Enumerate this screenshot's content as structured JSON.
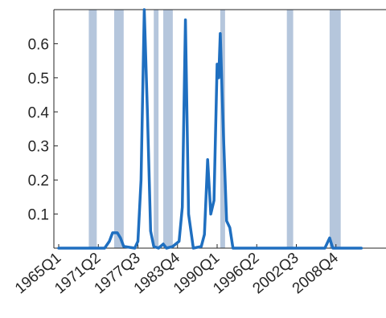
{
  "chart_data": {
    "type": "line",
    "title": "",
    "xlabel": "",
    "ylabel": "",
    "x_tick_labels": [
      "1965Q1",
      "1971Q2",
      "1977Q3",
      "1983Q4",
      "1990Q1",
      "1996Q2",
      "2002Q3",
      "2008Q4"
    ],
    "y_tick_labels": [
      "0.1",
      "0.2",
      "0.3",
      "0.4",
      "0.5",
      "0.6"
    ],
    "ylim": [
      0,
      0.7
    ],
    "xlim": [
      "1965Q1",
      "2012Q4"
    ],
    "grid": false,
    "legend": "none",
    "colors": {
      "line": "#1f6fc0",
      "shade": "#a8bcd6",
      "axis": "#262626"
    },
    "recession_periods": [
      {
        "start": "1969Q4",
        "end": "1970Q4"
      },
      {
        "start": "1973Q4",
        "end": "1975Q1"
      },
      {
        "start": "1980Q1",
        "end": "1980Q3"
      },
      {
        "start": "1981Q3",
        "end": "1982Q4"
      },
      {
        "start": "1990Q3",
        "end": "1991Q1"
      },
      {
        "start": "2001Q1",
        "end": "2001Q4"
      },
      {
        "start": "2007Q4",
        "end": "2009Q2"
      }
    ],
    "series": [
      {
        "values": [
          [
            "1965Q1",
            0.0
          ],
          [
            "1972Q2",
            0.0
          ],
          [
            "1973Q1",
            0.02
          ],
          [
            "1973Q3",
            0.045
          ],
          [
            "1974Q2",
            0.045
          ],
          [
            "1974Q4",
            0.03
          ],
          [
            "1975Q2",
            0.005
          ],
          [
            "1977Q1",
            0.0
          ],
          [
            "1977Q3",
            0.02
          ],
          [
            "1978Q1",
            0.2
          ],
          [
            "1978Q3",
            0.7
          ],
          [
            "1979Q1",
            0.4
          ],
          [
            "1979Q3",
            0.05
          ],
          [
            "1980Q1",
            0.005
          ],
          [
            "1980Q4",
            0.0
          ],
          [
            "1981Q3",
            0.012
          ],
          [
            "1982Q1",
            0.0
          ],
          [
            "1983Q1",
            0.005
          ],
          [
            "1984Q1",
            0.02
          ],
          [
            "1984Q3",
            0.12
          ],
          [
            "1985Q1",
            0.67
          ],
          [
            "1985Q3",
            0.1
          ],
          [
            "1986Q2",
            0.0
          ],
          [
            "1987Q3",
            0.005
          ],
          [
            "1988Q1",
            0.04
          ],
          [
            "1988Q3",
            0.26
          ],
          [
            "1989Q1",
            0.1
          ],
          [
            "1989Q3",
            0.14
          ],
          [
            "1990Q1",
            0.54
          ],
          [
            "1990Q2",
            0.5
          ],
          [
            "1990Q3",
            0.63
          ],
          [
            "1991Q1",
            0.33
          ],
          [
            "1991Q3",
            0.08
          ],
          [
            "1992Q1",
            0.06
          ],
          [
            "1992Q3",
            0.0
          ],
          [
            "2007Q1",
            0.0
          ],
          [
            "2007Q4",
            0.03
          ],
          [
            "2008Q2",
            0.0
          ],
          [
            "2012Q4",
            0.0
          ]
        ]
      }
    ]
  }
}
